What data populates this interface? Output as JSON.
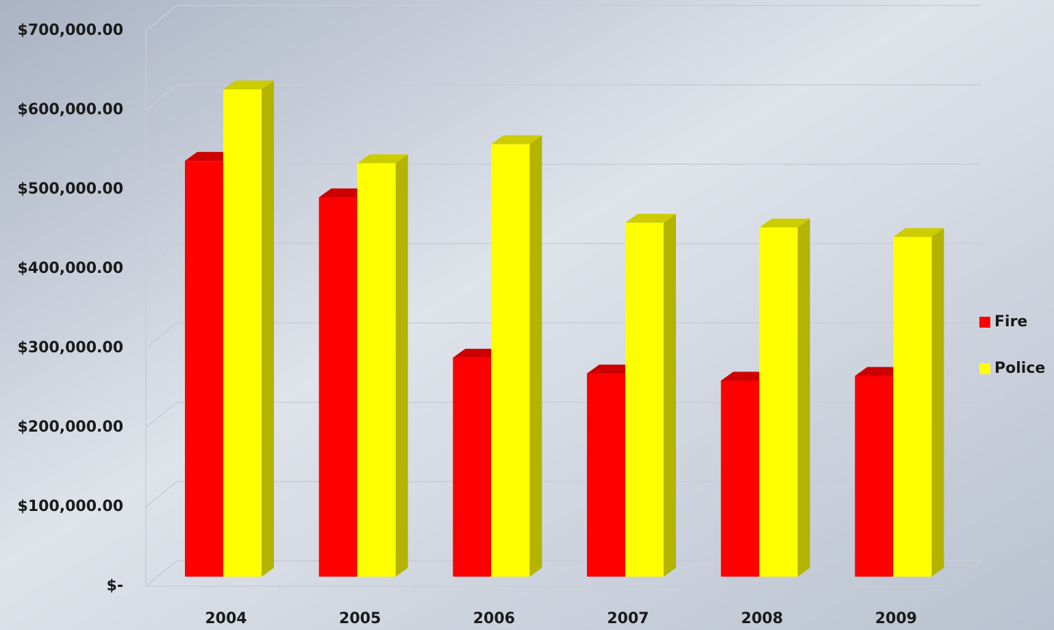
{
  "chart_data": {
    "type": "bar3d",
    "categories": [
      "2004",
      "2005",
      "2006",
      "2007",
      "2008",
      "2009"
    ],
    "series": [
      {
        "name": "Fire",
        "color": "#ff0000",
        "values": [
          524000,
          478000,
          276000,
          256000,
          247000,
          253000
        ]
      },
      {
        "name": "Police",
        "color": "#ffff00",
        "values": [
          614000,
          521000,
          545000,
          446000,
          440000,
          428000
        ]
      }
    ],
    "ylim": [
      0,
      700000
    ],
    "yticks": [
      {
        "value": 0,
        "label": "$-"
      },
      {
        "value": 100000,
        "label": "$100,000.00"
      },
      {
        "value": 200000,
        "label": "$200,000.00"
      },
      {
        "value": 300000,
        "label": "$300,000.00"
      },
      {
        "value": 400000,
        "label": "$400,000.00"
      },
      {
        "value": 500000,
        "label": "$500,000.00"
      },
      {
        "value": 600000,
        "label": "$600,000.00"
      },
      {
        "value": 700000,
        "label": "$700,000.00"
      }
    ],
    "grid": true,
    "legend": "right"
  }
}
